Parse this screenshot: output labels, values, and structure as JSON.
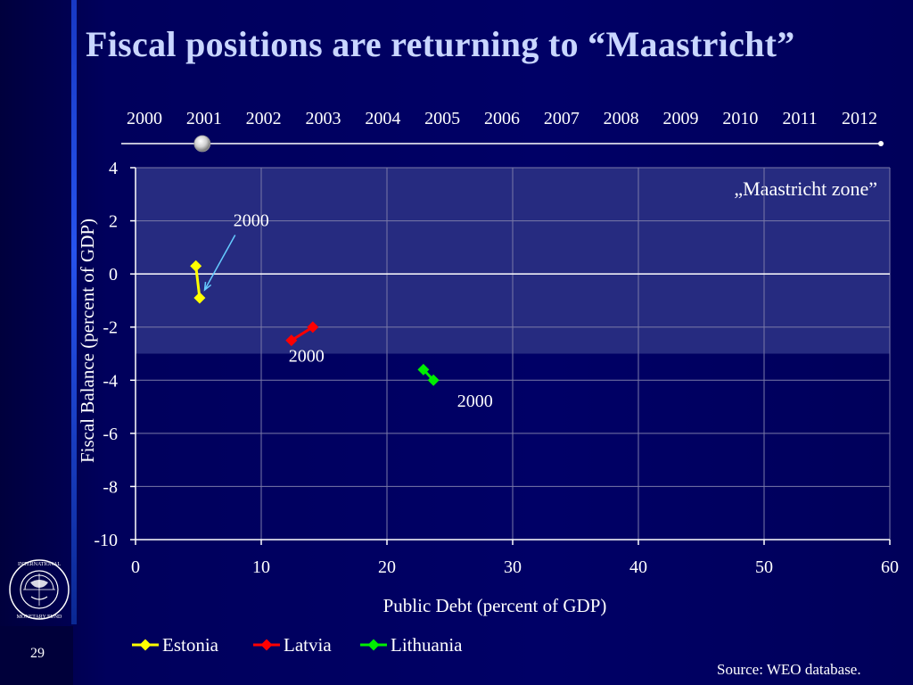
{
  "slide": {
    "title": "Fiscal positions are returning to “Maastricht”",
    "page_number": "29",
    "source": "Source: WEO database."
  },
  "timeline": {
    "years": [
      "2000",
      "2001",
      "2002",
      "2003",
      "2004",
      "2005",
      "2006",
      "2007",
      "2008",
      "2009",
      "2010",
      "2011",
      "2012"
    ],
    "current_year": "2001"
  },
  "colors": {
    "background": "#000066",
    "zone": "#262b80",
    "estonia": "#ffff00",
    "latvia": "#ff0000",
    "lithuania": "#00ee00",
    "annotation_arrow": "#66ccff"
  },
  "chart_data": {
    "type": "scatter",
    "xlabel": "Public Debt (percent of GDP)",
    "ylabel": "Fiscal Balance (percent of GDP)",
    "xlim": [
      0,
      60
    ],
    "ylim": [
      -10,
      4
    ],
    "xticks": [
      0,
      10,
      20,
      30,
      40,
      50,
      60
    ],
    "yticks": [
      -10,
      -8,
      -6,
      -4,
      -2,
      0,
      2,
      4
    ],
    "grid": true,
    "legend_position": "bottom",
    "zone": {
      "label": "„Maastricht zone”",
      "x_range": [
        0,
        60
      ],
      "y_range": [
        -3,
        4
      ]
    },
    "series": [
      {
        "name": "Estonia",
        "color": "#ffff00",
        "points": [
          {
            "year": 2000,
            "x": 5.1,
            "y": -0.9
          },
          {
            "year": 2001,
            "x": 4.8,
            "y": 0.3
          }
        ]
      },
      {
        "name": "Latvia",
        "color": "#ff0000",
        "points": [
          {
            "year": 2000,
            "x": 12.4,
            "y": -2.5
          },
          {
            "year": 2001,
            "x": 14.1,
            "y": -2.0
          }
        ]
      },
      {
        "name": "Lithuania",
        "color": "#00ee00",
        "points": [
          {
            "year": 2000,
            "x": 23.7,
            "y": -4.0
          },
          {
            "year": 2001,
            "x": 22.9,
            "y": -3.6
          }
        ]
      }
    ],
    "annotations": [
      {
        "text": "2000",
        "x": 9.2,
        "y": 1.8,
        "arrow_to": [
          5.5,
          -0.6
        ]
      },
      {
        "text": "2000",
        "x": 13.6,
        "y": -3.3
      },
      {
        "text": "2000",
        "x": 27.0,
        "y": -5.0
      }
    ]
  }
}
